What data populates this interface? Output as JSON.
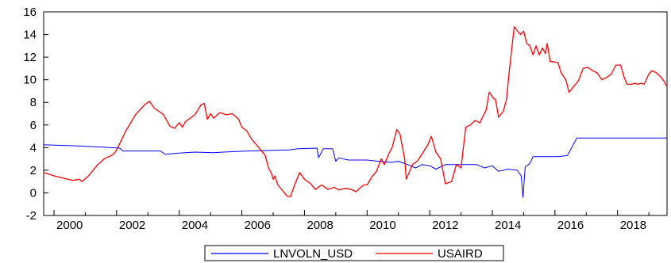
{
  "chart_data": {
    "type": "line",
    "title": "",
    "xlabel": "",
    "ylabel": "",
    "xlim": [
      1999.67,
      2019.58
    ],
    "ylim": [
      -2,
      16
    ],
    "y_ticks": [
      -2,
      0,
      2,
      4,
      6,
      8,
      10,
      12,
      14,
      16
    ],
    "x_ticks": [
      2000,
      2002,
      2004,
      2006,
      2008,
      2010,
      2012,
      2014,
      2016,
      2018
    ],
    "grid": false,
    "legend_position": "bottom-center",
    "series": [
      {
        "name": "LNVOLN_USD",
        "color": "#0000ff",
        "points": [
          [
            1999.67,
            4.25
          ],
          [
            2000.2,
            4.2
          ],
          [
            2000.8,
            4.15
          ],
          [
            2001.5,
            4.05
          ],
          [
            2002.1,
            3.95
          ],
          [
            2002.2,
            3.7
          ],
          [
            2002.8,
            3.7
          ],
          [
            2003.4,
            3.7
          ],
          [
            2003.55,
            3.4
          ],
          [
            2003.9,
            3.5
          ],
          [
            2004.5,
            3.6
          ],
          [
            2005.1,
            3.55
          ],
          [
            2005.4,
            3.6
          ],
          [
            2006.2,
            3.7
          ],
          [
            2007.5,
            3.8
          ],
          [
            2007.8,
            3.9
          ],
          [
            2008.4,
            3.95
          ],
          [
            2008.45,
            3.1
          ],
          [
            2008.6,
            3.9
          ],
          [
            2008.9,
            3.9
          ],
          [
            2009.0,
            2.8
          ],
          [
            2009.1,
            3.1
          ],
          [
            2009.4,
            2.9
          ],
          [
            2010.0,
            2.9
          ],
          [
            2010.5,
            2.75
          ],
          [
            2010.8,
            2.7
          ],
          [
            2011.0,
            2.8
          ],
          [
            2011.3,
            2.5
          ],
          [
            2011.55,
            2.2
          ],
          [
            2011.75,
            2.5
          ],
          [
            2012.0,
            2.4
          ],
          [
            2012.2,
            2.1
          ],
          [
            2012.5,
            2.5
          ],
          [
            2013.0,
            2.5
          ],
          [
            2013.5,
            2.5
          ],
          [
            2013.75,
            2.2
          ],
          [
            2014.0,
            2.4
          ],
          [
            2014.2,
            1.9
          ],
          [
            2014.5,
            2.1
          ],
          [
            2014.8,
            2.0
          ],
          [
            2014.92,
            1.5
          ],
          [
            2014.98,
            -0.4
          ],
          [
            2015.05,
            2.3
          ],
          [
            2015.2,
            2.6
          ],
          [
            2015.3,
            3.2
          ],
          [
            2015.9,
            3.2
          ],
          [
            2016.1,
            3.2
          ],
          [
            2016.4,
            3.3
          ],
          [
            2016.7,
            4.85
          ],
          [
            2017.0,
            4.85
          ],
          [
            2018.0,
            4.85
          ],
          [
            2019.58,
            4.85
          ]
        ]
      },
      {
        "name": "USAIRD",
        "color": "#ff0000",
        "points": [
          [
            1999.67,
            1.8
          ],
          [
            2000.0,
            1.5
          ],
          [
            2000.3,
            1.3
          ],
          [
            2000.6,
            1.1
          ],
          [
            2000.8,
            1.2
          ],
          [
            2000.9,
            1.0
          ],
          [
            2001.1,
            1.5
          ],
          [
            2001.4,
            2.5
          ],
          [
            2001.6,
            3.0
          ],
          [
            2001.9,
            3.4
          ],
          [
            2002.0,
            3.8
          ],
          [
            2002.3,
            5.5
          ],
          [
            2002.6,
            6.9
          ],
          [
            2002.9,
            7.8
          ],
          [
            2003.05,
            8.1
          ],
          [
            2003.2,
            7.5
          ],
          [
            2003.5,
            6.9
          ],
          [
            2003.7,
            5.9
          ],
          [
            2003.85,
            5.7
          ],
          [
            2004.0,
            6.2
          ],
          [
            2004.1,
            5.8
          ],
          [
            2004.2,
            6.3
          ],
          [
            2004.5,
            6.9
          ],
          [
            2004.7,
            7.8
          ],
          [
            2004.8,
            7.9
          ],
          [
            2004.9,
            6.5
          ],
          [
            2005.0,
            7.0
          ],
          [
            2005.1,
            6.6
          ],
          [
            2005.3,
            7.1
          ],
          [
            2005.5,
            6.9
          ],
          [
            2005.7,
            7.0
          ],
          [
            2005.9,
            6.5
          ],
          [
            2006.0,
            5.8
          ],
          [
            2006.15,
            5.5
          ],
          [
            2006.3,
            4.8
          ],
          [
            2006.45,
            4.3
          ],
          [
            2006.6,
            3.8
          ],
          [
            2006.75,
            3.3
          ],
          [
            2006.85,
            2.2
          ],
          [
            2006.95,
            1.7
          ],
          [
            2007.0,
            1.2
          ],
          [
            2007.05,
            1.5
          ],
          [
            2007.15,
            0.7
          ],
          [
            2007.3,
            0.2
          ],
          [
            2007.45,
            -0.3
          ],
          [
            2007.55,
            -0.35
          ],
          [
            2007.7,
            0.8
          ],
          [
            2007.85,
            1.8
          ],
          [
            2008.0,
            1.2
          ],
          [
            2008.2,
            0.8
          ],
          [
            2008.35,
            0.3
          ],
          [
            2008.55,
            0.7
          ],
          [
            2008.75,
            0.3
          ],
          [
            2008.95,
            0.5
          ],
          [
            2009.1,
            0.25
          ],
          [
            2009.3,
            0.4
          ],
          [
            2009.5,
            0.3
          ],
          [
            2009.65,
            0.1
          ],
          [
            2009.8,
            0.5
          ],
          [
            2009.9,
            0.7
          ],
          [
            2010.0,
            0.7
          ],
          [
            2010.15,
            1.4
          ],
          [
            2010.3,
            1.9
          ],
          [
            2010.45,
            3.0
          ],
          [
            2010.55,
            2.5
          ],
          [
            2010.7,
            3.5
          ],
          [
            2010.8,
            4.0
          ],
          [
            2010.95,
            5.6
          ],
          [
            2011.05,
            5.2
          ],
          [
            2011.2,
            3.0
          ],
          [
            2011.25,
            1.2
          ],
          [
            2011.45,
            2.5
          ],
          [
            2011.6,
            2.8
          ],
          [
            2011.75,
            3.4
          ],
          [
            2011.95,
            4.3
          ],
          [
            2012.05,
            5.0
          ],
          [
            2012.2,
            3.6
          ],
          [
            2012.35,
            3.0
          ],
          [
            2012.5,
            0.8
          ],
          [
            2012.7,
            1.0
          ],
          [
            2012.85,
            2.5
          ],
          [
            2013.0,
            2.2
          ],
          [
            2013.15,
            5.8
          ],
          [
            2013.3,
            6.0
          ],
          [
            2013.45,
            6.4
          ],
          [
            2013.6,
            6.2
          ],
          [
            2013.8,
            7.3
          ],
          [
            2013.9,
            8.9
          ],
          [
            2014.05,
            8.3
          ],
          [
            2014.1,
            8.3
          ],
          [
            2014.2,
            6.7
          ],
          [
            2014.35,
            7.2
          ],
          [
            2014.45,
            8.2
          ],
          [
            2014.55,
            11.0
          ],
          [
            2014.7,
            14.7
          ],
          [
            2014.8,
            14.3
          ],
          [
            2014.9,
            14.0
          ],
          [
            2015.0,
            14.3
          ],
          [
            2015.1,
            13.2
          ],
          [
            2015.2,
            13.0
          ],
          [
            2015.3,
            12.2
          ],
          [
            2015.4,
            13.0
          ],
          [
            2015.5,
            12.2
          ],
          [
            2015.6,
            12.8
          ],
          [
            2015.7,
            12.3
          ],
          [
            2015.75,
            13.2
          ],
          [
            2015.85,
            11.6
          ],
          [
            2015.95,
            11.6
          ],
          [
            2016.1,
            11.5
          ],
          [
            2016.2,
            10.6
          ],
          [
            2016.35,
            10.0
          ],
          [
            2016.45,
            8.9
          ],
          [
            2016.6,
            9.4
          ],
          [
            2016.75,
            9.9
          ],
          [
            2016.9,
            11.0
          ],
          [
            2017.05,
            11.1
          ],
          [
            2017.2,
            10.8
          ],
          [
            2017.35,
            10.6
          ],
          [
            2017.5,
            10.0
          ],
          [
            2017.65,
            10.2
          ],
          [
            2017.8,
            10.5
          ],
          [
            2017.95,
            11.3
          ],
          [
            2018.1,
            11.3
          ],
          [
            2018.2,
            10.3
          ],
          [
            2018.3,
            9.6
          ],
          [
            2018.45,
            9.6
          ],
          [
            2018.55,
            9.7
          ],
          [
            2018.65,
            9.6
          ],
          [
            2018.75,
            9.7
          ],
          [
            2018.85,
            9.6
          ],
          [
            2019.0,
            10.5
          ],
          [
            2019.1,
            10.8
          ],
          [
            2019.25,
            10.6
          ],
          [
            2019.4,
            10.2
          ],
          [
            2019.5,
            9.8
          ],
          [
            2019.58,
            9.4
          ]
        ]
      }
    ]
  }
}
